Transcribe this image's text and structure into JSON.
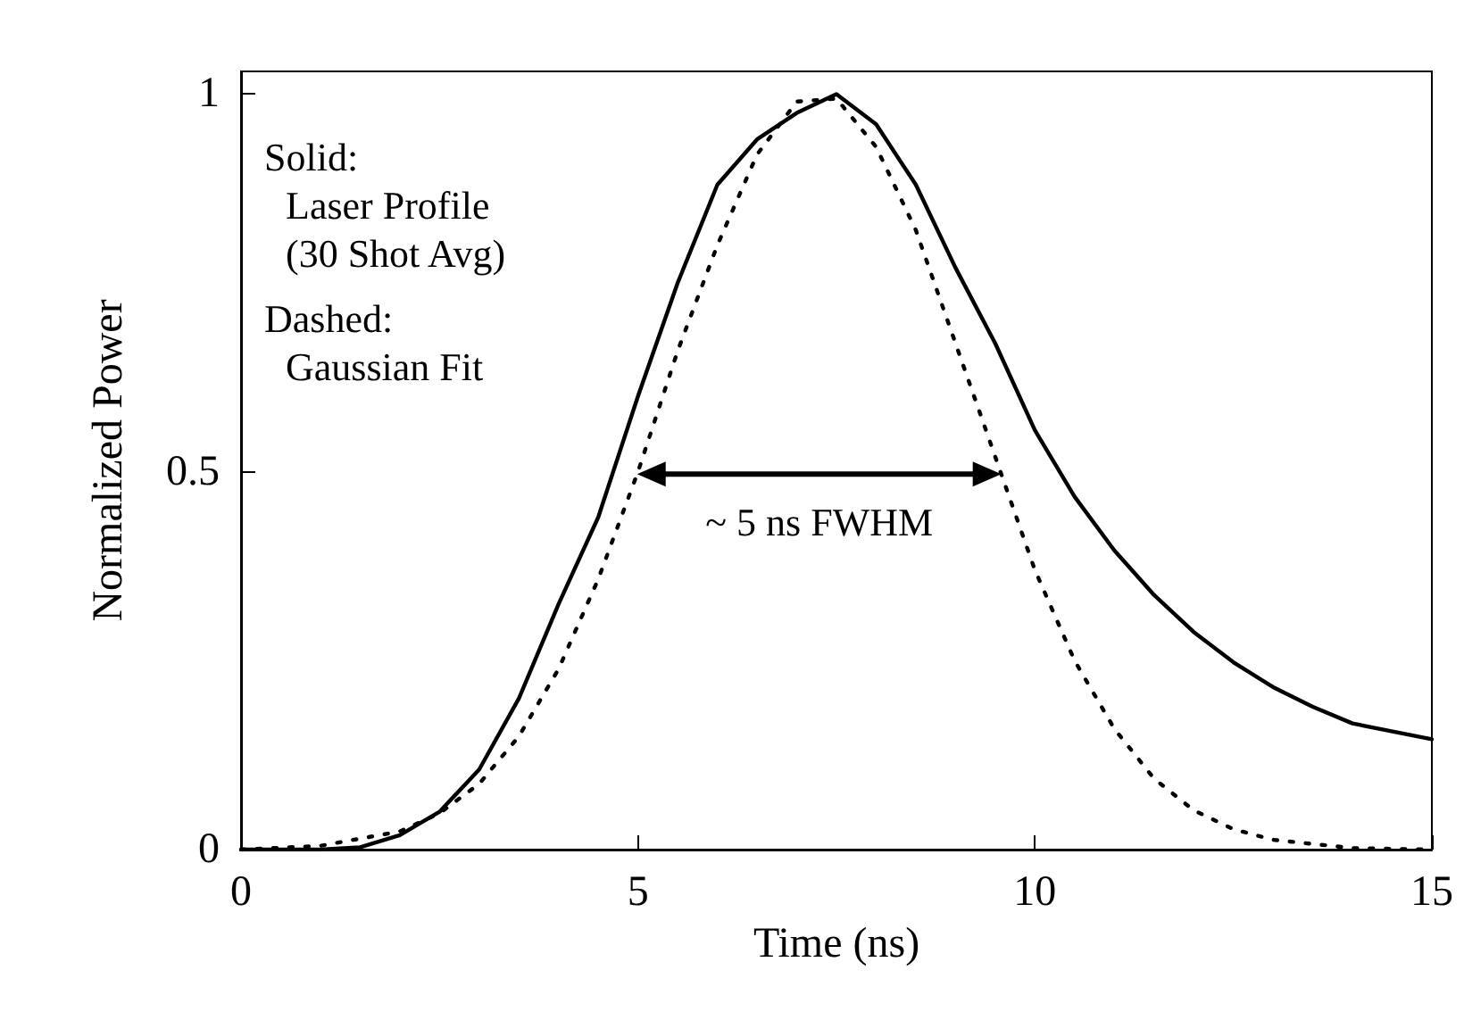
{
  "chart_data": {
    "type": "line",
    "xlabel": "Time (ns)",
    "ylabel": "Normalized Power",
    "xlim": [
      0,
      15
    ],
    "xticks": [
      0,
      5,
      10,
      15
    ],
    "ylim": [
      0,
      1.03
    ],
    "yticks": [
      0,
      0.5,
      1
    ],
    "grid": false,
    "marker": "none",
    "series": [
      {
        "color": "#000000",
        "line_style": "solid",
        "x": [
          0,
          1,
          1.5,
          2,
          2.5,
          3,
          3.5,
          4,
          4.5,
          5,
          5.5,
          6,
          6.5,
          7,
          7.5,
          8,
          8.5,
          9,
          9.5,
          10,
          10.5,
          11,
          11.5,
          12,
          12.5,
          13,
          13.5,
          14,
          15
        ],
        "values": [
          0,
          0,
          0.003,
          0.019,
          0.05,
          0.106,
          0.2,
          0.325,
          0.44,
          0.6,
          0.75,
          0.88,
          0.94,
          0.975,
          1.0,
          0.96,
          0.88,
          0.77,
          0.67,
          0.555,
          0.467,
          0.396,
          0.337,
          0.288,
          0.248,
          0.215,
          0.189,
          0.167,
          0.146
        ]
      },
      {
        "color": "#000000",
        "line_style": "dotted",
        "x": [
          0,
          1,
          2,
          2.5,
          3,
          3.5,
          4,
          4.5,
          5,
          5.5,
          6,
          6.5,
          7,
          7.5,
          8,
          8.5,
          9,
          9.5,
          10,
          10.5,
          11,
          11.5,
          12,
          12.5,
          13,
          14,
          15
        ],
        "values": [
          0,
          0.005,
          0.024,
          0.048,
          0.087,
          0.15,
          0.239,
          0.358,
          0.5,
          0.66,
          0.8,
          0.92,
          0.99,
          0.994,
          0.93,
          0.82,
          0.67,
          0.52,
          0.37,
          0.25,
          0.16,
          0.094,
          0.052,
          0.027,
          0.013,
          0.002,
          0
        ]
      }
    ],
    "annotations": [
      "Solid:",
      "Laser Profile",
      "(30 Shot Avg)",
      "Dashed:",
      "Gaussian Fit",
      "~ 5 ns FWHM"
    ]
  }
}
